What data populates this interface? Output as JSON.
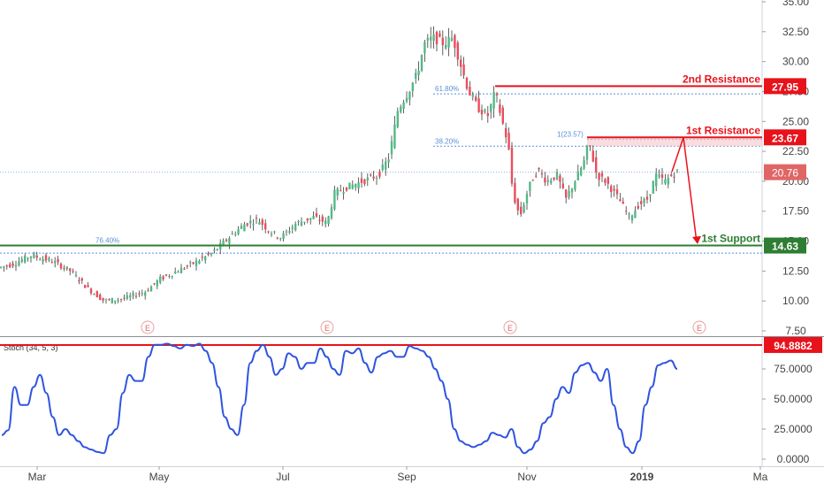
{
  "colors": {
    "up": "#53b987",
    "down": "#eb4d5c",
    "wick": "#3a3a3a",
    "resistance": "#e8121b",
    "support": "#2e7d32",
    "fib": "#5b8fd9",
    "stoch": "#2f54e0",
    "axis_text": "#444444",
    "current_price_bg": "#e06666"
  },
  "chart_data": [
    {
      "type": "candlestick",
      "ylim": [
        7.5,
        35
      ],
      "y_ticks": [
        "35.00",
        "32.50",
        "30.00",
        "27.50",
        "25.00",
        "22.50",
        "20.00",
        "17.50",
        "15.00",
        "12.50",
        "10.00",
        "7.50"
      ],
      "x_ticks": [
        "Mar",
        "May",
        "Jul",
        "Sep",
        "Nov",
        "2019",
        "Ma"
      ],
      "price_path": [
        {
          "x": 0,
          "p": 12.8
        },
        {
          "x": 15,
          "p": 13.1
        },
        {
          "x": 35,
          "p": 13.8
        },
        {
          "x": 60,
          "p": 13.3
        },
        {
          "x": 80,
          "p": 12.5
        },
        {
          "x": 100,
          "p": 11.0
        },
        {
          "x": 118,
          "p": 10.0
        },
        {
          "x": 140,
          "p": 10.2
        },
        {
          "x": 165,
          "p": 10.8
        },
        {
          "x": 180,
          "p": 11.8
        },
        {
          "x": 200,
          "p": 12.5
        },
        {
          "x": 220,
          "p": 13.2
        },
        {
          "x": 240,
          "p": 14.0
        },
        {
          "x": 262,
          "p": 15.5
        },
        {
          "x": 278,
          "p": 16.5
        },
        {
          "x": 292,
          "p": 16.8
        },
        {
          "x": 305,
          "p": 15.8
        },
        {
          "x": 318,
          "p": 15.3
        },
        {
          "x": 335,
          "p": 16.5
        },
        {
          "x": 355,
          "p": 17.0
        },
        {
          "x": 370,
          "p": 16.5
        },
        {
          "x": 378,
          "p": 19.0
        },
        {
          "x": 392,
          "p": 19.5
        },
        {
          "x": 410,
          "p": 20.0
        },
        {
          "x": 428,
          "p": 20.5
        },
        {
          "x": 440,
          "p": 22.0
        },
        {
          "x": 450,
          "p": 26.0
        },
        {
          "x": 462,
          "p": 27.5
        },
        {
          "x": 472,
          "p": 29.0
        },
        {
          "x": 480,
          "p": 31.5
        },
        {
          "x": 490,
          "p": 32.0
        },
        {
          "x": 502,
          "p": 31.5
        },
        {
          "x": 512,
          "p": 32.0
        },
        {
          "x": 520,
          "p": 30.0
        },
        {
          "x": 530,
          "p": 27.5
        },
        {
          "x": 542,
          "p": 26.0
        },
        {
          "x": 552,
          "p": 25.5
        },
        {
          "x": 560,
          "p": 27.5
        },
        {
          "x": 568,
          "p": 25.0
        },
        {
          "x": 575,
          "p": 23.0
        },
        {
          "x": 580,
          "p": 19.0
        },
        {
          "x": 588,
          "p": 17.0
        },
        {
          "x": 598,
          "p": 19.5
        },
        {
          "x": 608,
          "p": 21.0
        },
        {
          "x": 618,
          "p": 20.0
        },
        {
          "x": 630,
          "p": 20.5
        },
        {
          "x": 640,
          "p": 18.5
        },
        {
          "x": 650,
          "p": 20.0
        },
        {
          "x": 660,
          "p": 21.5
        },
        {
          "x": 666,
          "p": 23.3
        },
        {
          "x": 675,
          "p": 20.5
        },
        {
          "x": 685,
          "p": 20.0
        },
        {
          "x": 700,
          "p": 18.5
        },
        {
          "x": 712,
          "p": 17.0
        },
        {
          "x": 722,
          "p": 18.0
        },
        {
          "x": 732,
          "p": 18.5
        },
        {
          "x": 742,
          "p": 20.5
        },
        {
          "x": 752,
          "p": 20.0
        },
        {
          "x": 760,
          "p": 20.5
        },
        {
          "x": 766,
          "p": 20.8
        }
      ],
      "current_price": "20.76",
      "levels": [
        {
          "label": "2nd Resistance",
          "value": 27.95,
          "value_text": "27.95",
          "kind": "resistance"
        },
        {
          "label": "1st Resistance",
          "value": 23.67,
          "value_text": "23.67",
          "kind": "resistance"
        },
        {
          "label": "1st Support",
          "value": 14.63,
          "value_text": "14.63",
          "kind": "support"
        }
      ],
      "fib_lines": [
        {
          "label": "61.80%",
          "value": 27.3
        },
        {
          "label": "38.20%",
          "value": 22.93
        },
        {
          "label": "76.40%",
          "value": 14.65
        }
      ],
      "fib_extra_line": 14.0,
      "fib_ref_label": "1(23.57)",
      "earnings_marker": "E",
      "earnings_count": 4
    },
    {
      "type": "line",
      "title": "Stoch (34, 5, 3)",
      "ylim": [
        0,
        100
      ],
      "y_ticks": [
        "75.0000",
        "50.0000",
        "25.0000",
        "0.0000"
      ],
      "overbought_value": 94.8882,
      "overbought_text": "94.8882",
      "values": [
        20,
        24,
        60,
        45,
        45,
        60,
        70,
        55,
        35,
        20,
        25,
        20,
        15,
        10,
        8,
        6,
        5,
        20,
        25,
        55,
        70,
        65,
        65,
        85,
        95,
        95,
        96,
        94,
        92,
        95,
        94,
        96,
        90,
        80,
        60,
        35,
        25,
        20,
        45,
        80,
        90,
        95,
        85,
        70,
        75,
        88,
        85,
        75,
        80,
        80,
        92,
        85,
        75,
        70,
        90,
        88,
        92,
        80,
        72,
        85,
        88,
        90,
        85,
        85,
        94,
        92,
        90,
        85,
        75,
        65,
        50,
        25,
        15,
        12,
        10,
        12,
        15,
        22,
        20,
        18,
        25,
        10,
        5,
        8,
        15,
        30,
        35,
        50,
        60,
        55,
        72,
        78,
        80,
        72,
        65,
        75,
        45,
        25,
        10,
        5,
        15,
        45,
        60,
        78,
        80,
        82,
        75
      ]
    }
  ]
}
